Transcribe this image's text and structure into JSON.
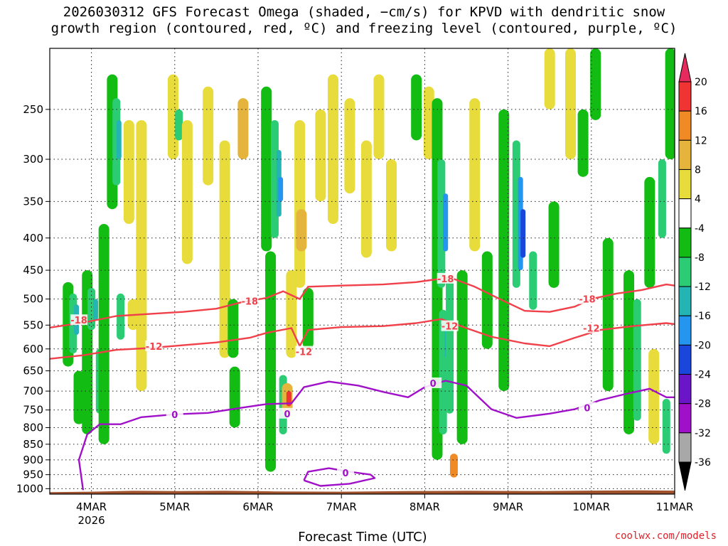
{
  "title_lines": [
    "2026030312 GFS Forecast Omega (shaded, −cm/s) for KPVD with dendritic snow",
    "growth region (contoured, red, ºC) and freezing level (contoured, purple, ºC)"
  ],
  "credit": "coolwx.com/models",
  "chart_data": {
    "type": "heatmap",
    "title": "2026030312 GFS Forecast Omega (shaded, −cm/s) for KPVD with dendritic snow growth region (contoured, red, ºC) and freezing level (contoured, purple, ºC)",
    "xlabel": "Forecast Time (UTC)",
    "ylabel": "",
    "x_ticks": [
      "4MAR",
      "5MAR",
      "6MAR",
      "7MAR",
      "8MAR",
      "9MAR",
      "10MAR",
      "11MAR"
    ],
    "x_tick_sublabel": "2026",
    "x_range_days": [
      3.5,
      11.0
    ],
    "y_ticks": [
      250,
      300,
      350,
      400,
      450,
      500,
      550,
      600,
      650,
      700,
      750,
      800,
      850,
      900,
      950,
      1000
    ],
    "y_range_hpa": [
      200,
      1020
    ],
    "y_scale": "log",
    "grid": true,
    "colorbar": {
      "levels": [
        20,
        16,
        12,
        8,
        4,
        -4,
        -8,
        -12,
        -16,
        -20,
        -24,
        -28,
        -32,
        -36
      ],
      "colors": [
        "#e62a5d",
        "#f03434",
        "#f08a24",
        "#e4b43c",
        "#e8dc3c",
        "#ffffff",
        "#12bc12",
        "#2ccc74",
        "#24b4b4",
        "#2496f0",
        "#1a46dc",
        "#6a16c8",
        "#a010c8",
        "#a8a8a8",
        "#000000"
      ],
      "placement": "right"
    },
    "omega_cells": [
      {
        "t": 3.72,
        "p1": 470,
        "p2": 640,
        "v": -8
      },
      {
        "t": 3.78,
        "p1": 490,
        "p2": 610,
        "v": -12
      },
      {
        "t": 3.82,
        "p1": 510,
        "p2": 570,
        "v": -16
      },
      {
        "t": 3.85,
        "p1": 650,
        "p2": 790,
        "v": -8
      },
      {
        "t": 3.95,
        "p1": 450,
        "p2": 820,
        "v": -8
      },
      {
        "t": 4.0,
        "p1": 480,
        "p2": 560,
        "v": -12
      },
      {
        "t": 4.05,
        "p1": 500,
        "p2": 540,
        "v": -16
      },
      {
        "t": 4.1,
        "p1": 600,
        "p2": 760,
        "v": -12
      },
      {
        "t": 4.15,
        "p1": 380,
        "p2": 850,
        "v": -8
      },
      {
        "t": 4.25,
        "p1": 220,
        "p2": 360,
        "v": -8
      },
      {
        "t": 4.3,
        "p1": 240,
        "p2": 330,
        "v": -12
      },
      {
        "t": 4.33,
        "p1": 260,
        "p2": 300,
        "v": -16
      },
      {
        "t": 4.35,
        "p1": 490,
        "p2": 580,
        "v": -12
      },
      {
        "t": 4.45,
        "p1": 260,
        "p2": 380,
        "v": 4
      },
      {
        "t": 4.5,
        "p1": 500,
        "p2": 560,
        "v": 4
      },
      {
        "t": 4.6,
        "p1": 260,
        "p2": 700,
        "v": 4
      },
      {
        "t": 4.98,
        "p1": 220,
        "p2": 300,
        "v": 4
      },
      {
        "t": 5.05,
        "p1": 250,
        "p2": 280,
        "v": -12
      },
      {
        "t": 5.15,
        "p1": 260,
        "p2": 440,
        "v": 4
      },
      {
        "t": 5.4,
        "p1": 230,
        "p2": 330,
        "v": 4
      },
      {
        "t": 5.6,
        "p1": 280,
        "p2": 620,
        "v": 4
      },
      {
        "t": 5.7,
        "p1": 500,
        "p2": 620,
        "v": -8
      },
      {
        "t": 5.72,
        "p1": 640,
        "p2": 800,
        "v": -8
      },
      {
        "t": 5.82,
        "p1": 240,
        "p2": 300,
        "v": 8
      },
      {
        "t": 6.1,
        "p1": 230,
        "p2": 420,
        "v": -8
      },
      {
        "t": 6.15,
        "p1": 420,
        "p2": 940,
        "v": -8
      },
      {
        "t": 6.2,
        "p1": 260,
        "p2": 400,
        "v": -12
      },
      {
        "t": 6.25,
        "p1": 290,
        "p2": 370,
        "v": -16
      },
      {
        "t": 6.27,
        "p1": 320,
        "p2": 350,
        "v": -20
      },
      {
        "t": 6.3,
        "p1": 660,
        "p2": 820,
        "v": -12
      },
      {
        "t": 6.35,
        "p1": 680,
        "p2": 760,
        "v": 8
      },
      {
        "t": 6.37,
        "p1": 700,
        "p2": 740,
        "v": 16
      },
      {
        "t": 6.4,
        "p1": 450,
        "p2": 620,
        "v": 4
      },
      {
        "t": 6.5,
        "p1": 260,
        "p2": 480,
        "v": 4
      },
      {
        "t": 6.52,
        "p1": 360,
        "p2": 420,
        "v": 8
      },
      {
        "t": 6.6,
        "p1": 480,
        "p2": 600,
        "v": -8
      },
      {
        "t": 6.75,
        "p1": 250,
        "p2": 350,
        "v": 4
      },
      {
        "t": 6.9,
        "p1": 220,
        "p2": 380,
        "v": 4
      },
      {
        "t": 7.1,
        "p1": 240,
        "p2": 340,
        "v": 4
      },
      {
        "t": 7.3,
        "p1": 280,
        "p2": 430,
        "v": 4
      },
      {
        "t": 7.45,
        "p1": 220,
        "p2": 300,
        "v": 4
      },
      {
        "t": 7.6,
        "p1": 300,
        "p2": 420,
        "v": 4
      },
      {
        "t": 7.9,
        "p1": 220,
        "p2": 280,
        "v": -8
      },
      {
        "t": 8.05,
        "p1": 230,
        "p2": 300,
        "v": 4
      },
      {
        "t": 8.15,
        "p1": 240,
        "p2": 900,
        "v": -8
      },
      {
        "t": 8.2,
        "p1": 300,
        "p2": 480,
        "v": -12
      },
      {
        "t": 8.22,
        "p1": 520,
        "p2": 820,
        "v": -12
      },
      {
        "t": 8.25,
        "p1": 340,
        "p2": 420,
        "v": -20
      },
      {
        "t": 8.27,
        "p1": 550,
        "p2": 620,
        "v": -16
      },
      {
        "t": 8.3,
        "p1": 460,
        "p2": 760,
        "v": -12
      },
      {
        "t": 8.35,
        "p1": 880,
        "p2": 960,
        "v": 12
      },
      {
        "t": 8.45,
        "p1": 450,
        "p2": 850,
        "v": -8
      },
      {
        "t": 8.6,
        "p1": 240,
        "p2": 420,
        "v": 4
      },
      {
        "t": 8.75,
        "p1": 420,
        "p2": 600,
        "v": -8
      },
      {
        "t": 8.95,
        "p1": 250,
        "p2": 700,
        "v": -8
      },
      {
        "t": 9.1,
        "p1": 280,
        "p2": 480,
        "v": -12
      },
      {
        "t": 9.15,
        "p1": 320,
        "p2": 450,
        "v": -20
      },
      {
        "t": 9.18,
        "p1": 360,
        "p2": 430,
        "v": -24
      },
      {
        "t": 9.3,
        "p1": 420,
        "p2": 520,
        "v": -12
      },
      {
        "t": 9.5,
        "p1": 200,
        "p2": 250,
        "v": 4
      },
      {
        "t": 9.55,
        "p1": 350,
        "p2": 480,
        "v": -8
      },
      {
        "t": 9.75,
        "p1": 200,
        "p2": 300,
        "v": 4
      },
      {
        "t": 9.9,
        "p1": 250,
        "p2": 320,
        "v": -8
      },
      {
        "t": 10.05,
        "p1": 200,
        "p2": 260,
        "v": -8
      },
      {
        "t": 10.2,
        "p1": 400,
        "p2": 700,
        "v": -8
      },
      {
        "t": 10.45,
        "p1": 450,
        "p2": 820,
        "v": -8
      },
      {
        "t": 10.55,
        "p1": 500,
        "p2": 780,
        "v": -12
      },
      {
        "t": 10.7,
        "p1": 320,
        "p2": 480,
        "v": -8
      },
      {
        "t": 10.75,
        "p1": 600,
        "p2": 850,
        "v": 4
      },
      {
        "t": 10.85,
        "p1": 300,
        "p2": 400,
        "v": -12
      },
      {
        "t": 10.9,
        "p1": 720,
        "p2": 880,
        "v": -12
      },
      {
        "t": 10.95,
        "p1": 200,
        "p2": 300,
        "v": -8
      }
    ],
    "contours": [
      {
        "name": "-18",
        "color": "#f0404a",
        "points": [
          [
            3.5,
            555
          ],
          [
            3.9,
            545
          ],
          [
            4.3,
            532
          ],
          [
            4.7,
            528
          ],
          [
            5.1,
            524
          ],
          [
            5.5,
            518
          ],
          [
            5.8,
            506
          ],
          [
            6.1,
            498
          ],
          [
            6.3,
            486
          ],
          [
            6.5,
            500
          ],
          [
            6.6,
            478
          ],
          [
            7.0,
            476
          ],
          [
            7.5,
            474
          ],
          [
            7.9,
            470
          ],
          [
            8.1,
            466
          ],
          [
            8.3,
            462
          ],
          [
            8.6,
            478
          ],
          [
            8.9,
            500
          ],
          [
            9.2,
            522
          ],
          [
            9.5,
            524
          ],
          [
            9.8,
            514
          ],
          [
            10.0,
            500
          ],
          [
            10.3,
            490
          ],
          [
            10.6,
            484
          ],
          [
            10.9,
            474
          ],
          [
            11.0,
            476
          ]
        ],
        "labels": [
          [
            3.85,
            540
          ],
          [
            5.9,
            504
          ],
          [
            8.25,
            464
          ],
          [
            9.95,
            500
          ]
        ]
      },
      {
        "name": "-12",
        "color": "#f0404a",
        "points": [
          [
            3.5,
            622
          ],
          [
            3.9,
            614
          ],
          [
            4.3,
            602
          ],
          [
            4.7,
            598
          ],
          [
            5.1,
            592
          ],
          [
            5.5,
            586
          ],
          [
            5.9,
            576
          ],
          [
            6.1,
            566
          ],
          [
            6.4,
            556
          ],
          [
            6.5,
            594
          ],
          [
            6.6,
            560
          ],
          [
            7.0,
            554
          ],
          [
            7.5,
            552
          ],
          [
            7.9,
            546
          ],
          [
            8.2,
            538
          ],
          [
            8.5,
            556
          ],
          [
            8.8,
            574
          ],
          [
            9.2,
            588
          ],
          [
            9.5,
            594
          ],
          [
            9.8,
            576
          ],
          [
            10.1,
            560
          ],
          [
            10.5,
            552
          ],
          [
            10.9,
            546
          ],
          [
            11.0,
            548
          ]
        ],
        "labels": [
          [
            4.75,
            594
          ],
          [
            6.55,
            606
          ],
          [
            8.3,
            552
          ],
          [
            10.0,
            556
          ]
        ]
      },
      {
        "name": "0",
        "color": "#a010c8",
        "points": [
          [
            3.9,
            1005
          ],
          [
            3.85,
            900
          ],
          [
            3.95,
            820
          ],
          [
            4.1,
            790
          ],
          [
            4.35,
            790
          ],
          [
            4.6,
            770
          ],
          [
            5.0,
            762
          ],
          [
            5.4,
            758
          ],
          [
            5.8,
            744
          ],
          [
            6.1,
            734
          ],
          [
            6.4,
            732
          ],
          [
            6.55,
            690
          ],
          [
            6.85,
            676
          ],
          [
            7.2,
            686
          ],
          [
            7.5,
            702
          ],
          [
            7.8,
            716
          ],
          [
            8.0,
            690
          ],
          [
            8.25,
            674
          ],
          [
            8.5,
            686
          ],
          [
            8.8,
            748
          ],
          [
            9.1,
            772
          ],
          [
            9.5,
            760
          ],
          [
            9.8,
            748
          ],
          [
            10.1,
            724
          ],
          [
            10.4,
            708
          ],
          [
            10.7,
            694
          ],
          [
            10.9,
            716
          ],
          [
            11.0,
            716
          ]
        ],
        "labels": [
          [
            5.0,
            762
          ],
          [
            6.35,
            760
          ],
          [
            8.1,
            680
          ],
          [
            9.95,
            744
          ]
        ]
      },
      {
        "name": "0",
        "color": "#a010c8",
        "points": [
          [
            6.55,
            970
          ],
          [
            6.6,
            940
          ],
          [
            6.85,
            928
          ],
          [
            7.1,
            940
          ],
          [
            7.35,
            950
          ],
          [
            7.4,
            962
          ],
          [
            7.1,
            982
          ],
          [
            6.75,
            990
          ],
          [
            6.55,
            970
          ]
        ],
        "labels": [
          [
            7.05,
            944
          ]
        ]
      }
    ],
    "terrain_color": "#a0522d"
  }
}
